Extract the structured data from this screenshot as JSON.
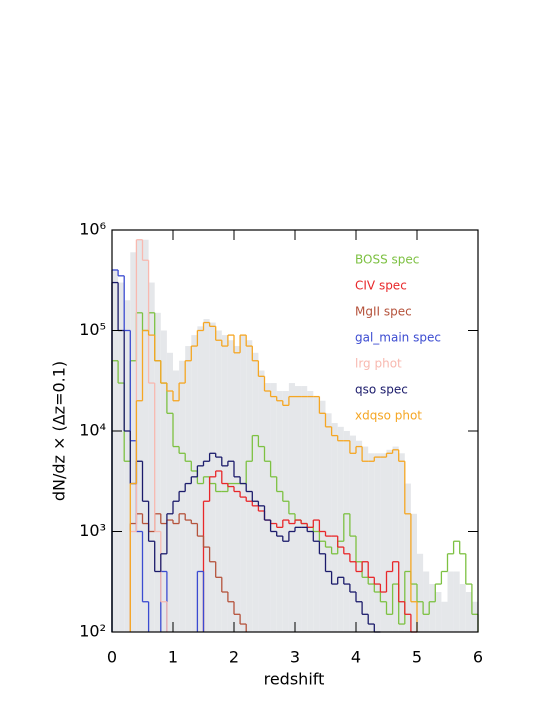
{
  "chart_data": {
    "type": "step-histogram",
    "xlabel": "redshift",
    "ylabel": "dN/dz × (Δz=0.1)",
    "log_y": true,
    "xlim": [
      0,
      6
    ],
    "xticks": [
      0,
      1,
      2,
      3,
      4,
      5,
      6
    ],
    "ylim": [
      100,
      1000000
    ],
    "yticks": [
      {
        "value": 100,
        "label": "10²"
      },
      {
        "value": 1000,
        "label": "10³"
      },
      {
        "value": 10000,
        "label": "10⁴"
      },
      {
        "value": 100000,
        "label": "10⁵"
      },
      {
        "value": 1000000,
        "label": "10⁶"
      }
    ],
    "bins": [
      0,
      0.1,
      0.2,
      0.3,
      0.4,
      0.5,
      0.6,
      0.7,
      0.8,
      0.9,
      1,
      1.1,
      1.2,
      1.3,
      1.4,
      1.5,
      1.6,
      1.7,
      1.8,
      1.9,
      2,
      2.1,
      2.2,
      2.3,
      2.4,
      2.5,
      2.6,
      2.7,
      2.8,
      2.9,
      3,
      3.1,
      3.2,
      3.3,
      3.4,
      3.5,
      3.6,
      3.7,
      3.8,
      3.9,
      4,
      4.1,
      4.2,
      4.3,
      4.4,
      4.5,
      4.6,
      4.7,
      4.8,
      4.9,
      5,
      5.1,
      5.2,
      5.3,
      5.4,
      5.5,
      5.6,
      5.7,
      5.8,
      5.9,
      6
    ],
    "total": {
      "color": "#e5e7ea",
      "values": [
        400000,
        300000,
        200000,
        600000,
        800000,
        800000,
        300000,
        150000,
        100000,
        60000,
        40000,
        50000,
        70000,
        90000,
        110000,
        130000,
        120000,
        100000,
        90000,
        80000,
        70000,
        90000,
        80000,
        60000,
        40000,
        30000,
        30000,
        25000,
        25000,
        30000,
        28000,
        28000,
        25000,
        22000,
        20000,
        15000,
        12000,
        11000,
        10000,
        9000,
        8000,
        7000,
        6000,
        6000,
        6000,
        6500,
        7000,
        6000,
        3000,
        1500,
        600,
        400,
        300,
        250,
        200,
        400,
        400,
        300,
        250,
        200
      ]
    },
    "series": [
      {
        "name": "BOSS spec",
        "color": "#7dc142",
        "values": [
          50000,
          30000,
          5000,
          50000,
          150000,
          100000,
          150000,
          50000,
          30000,
          15000,
          7000,
          6000,
          5000,
          4000,
          3000,
          3500,
          3000,
          2500,
          2500,
          3000,
          3000,
          3000,
          5000,
          9000,
          7000,
          5000,
          3500,
          2500,
          2000,
          1500,
          1300,
          1200,
          1100,
          1000,
          800,
          700,
          600,
          800,
          1500,
          900,
          500,
          350,
          300,
          250,
          200,
          150,
          300,
          120,
          400,
          300,
          200,
          150,
          200,
          300,
          400,
          600,
          800,
          600,
          300,
          150
        ]
      },
      {
        "name": "CIV spec",
        "color": "#e8272a",
        "values": [
          null,
          null,
          null,
          null,
          null,
          null,
          null,
          null,
          null,
          null,
          null,
          null,
          null,
          null,
          null,
          2000,
          3500,
          4000,
          3000,
          2800,
          2500,
          2200,
          2000,
          1800,
          1600,
          1300,
          1200,
          1100,
          1300,
          1200,
          1300,
          1200,
          1100,
          1300,
          1000,
          900,
          900,
          700,
          600,
          500,
          400,
          500,
          350,
          300,
          250,
          400,
          500,
          200,
          150,
          100,
          null,
          null,
          null,
          null,
          null,
          null,
          null,
          null,
          null,
          null
        ]
      },
      {
        "name": "MgII spec",
        "color": "#b5533c",
        "values": [
          null,
          null,
          null,
          1200,
          1500,
          1200,
          1000,
          1500,
          1200,
          1300,
          1200,
          1500,
          1300,
          1200,
          900,
          700,
          500,
          350,
          250,
          200,
          150,
          120,
          null,
          null,
          null,
          null,
          null,
          null,
          null,
          null,
          null,
          null,
          null,
          null,
          null,
          null,
          null,
          null,
          null,
          null,
          null,
          null,
          null,
          null,
          null,
          null,
          null,
          null,
          null,
          null,
          null,
          null,
          null,
          null,
          null,
          null,
          null,
          null,
          null,
          null
        ]
      },
      {
        "name": "gal_main spec",
        "color": "#3b4bd1",
        "values": [
          400000,
          350000,
          100000,
          8000,
          1000,
          200,
          null,
          null,
          400,
          null,
          null,
          null,
          null,
          null,
          400,
          null,
          null,
          null,
          null,
          null,
          null,
          null,
          null,
          null,
          null,
          null,
          null,
          null,
          null,
          null,
          null,
          null,
          null,
          null,
          null,
          null,
          null,
          null,
          null,
          null,
          null,
          null,
          null,
          null,
          null,
          null,
          null,
          null,
          null,
          null,
          null,
          null,
          null,
          null,
          null,
          null,
          null,
          null,
          null,
          null
        ]
      },
      {
        "name": "lrg phot",
        "color": "#f8b9b0",
        "values": [
          null,
          null,
          null,
          1000,
          800000,
          500000,
          30000,
          1000,
          200,
          null,
          null,
          null,
          null,
          null,
          null,
          null,
          null,
          null,
          null,
          null,
          null,
          null,
          null,
          null,
          null,
          null,
          null,
          null,
          null,
          null,
          null,
          null,
          null,
          null,
          null,
          null,
          null,
          null,
          null,
          null,
          null,
          null,
          null,
          null,
          null,
          null,
          null,
          null,
          null,
          null,
          null,
          null,
          null,
          null,
          null,
          null,
          null,
          null,
          null,
          null
        ]
      },
      {
        "name": "qso spec",
        "color": "#1b1b6b",
        "values": [
          300000,
          100000,
          10000,
          3000,
          5000,
          2000,
          800,
          400,
          600,
          1500,
          2000,
          2500,
          3000,
          3500,
          4500,
          5000,
          6000,
          5500,
          4500,
          5000,
          3500,
          3000,
          2500,
          2000,
          1800,
          1300,
          1000,
          900,
          800,
          1000,
          1100,
          1100,
          1000,
          800,
          600,
          400,
          300,
          350,
          300,
          250,
          200,
          150,
          120,
          100,
          null,
          null,
          null,
          null,
          null,
          null,
          null,
          null,
          null,
          null,
          null,
          null,
          null,
          null,
          null,
          null
        ]
      },
      {
        "name": "xdqso phot",
        "color": "#f5a623",
        "values": [
          null,
          null,
          null,
          3000,
          20000,
          100000,
          90000,
          50000,
          30000,
          25000,
          20000,
          30000,
          50000,
          70000,
          100000,
          120000,
          110000,
          80000,
          70000,
          90000,
          60000,
          90000,
          70000,
          50000,
          35000,
          25000,
          22000,
          20000,
          18000,
          22000,
          22000,
          22000,
          22000,
          22000,
          15000,
          11000,
          9000,
          8000,
          8000,
          6000,
          7000,
          5000,
          5000,
          5500,
          5500,
          6000,
          6500,
          5000,
          1500,
          200,
          null,
          null,
          null,
          null,
          null,
          null,
          null,
          null,
          null,
          null
        ]
      }
    ]
  }
}
